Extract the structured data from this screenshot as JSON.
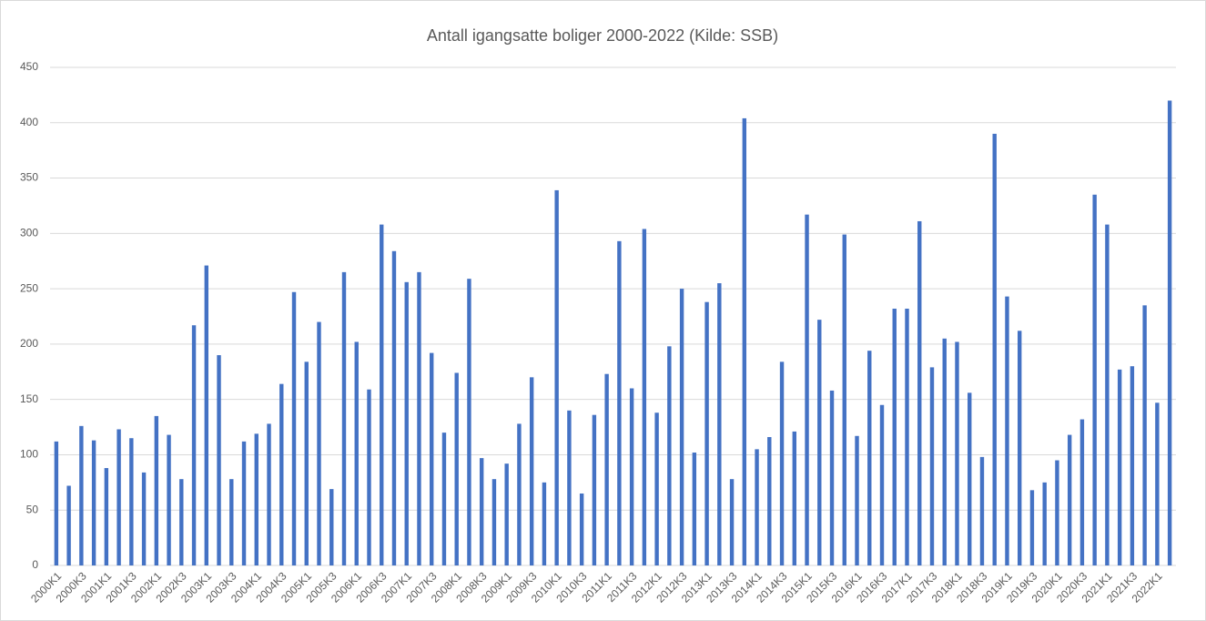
{
  "chart_data": {
    "type": "bar",
    "title": "Antall igangsatte boliger 2000-2022 (Kilde: SSB)",
    "categories": [
      "2000K1",
      null,
      "2000K3",
      null,
      "2001K1",
      null,
      "2001K3",
      null,
      "2002K1",
      null,
      "2002K3",
      null,
      "2003K1",
      null,
      "2003K3",
      null,
      "2004K1",
      null,
      "2004K3",
      null,
      "2005K1",
      null,
      "2005K3",
      null,
      "2006K1",
      null,
      "2006K3",
      null,
      "2007K1",
      null,
      "2007K3",
      null,
      "2008K1",
      null,
      "2008K3",
      null,
      "2009K1",
      null,
      "2009K3",
      null,
      "2010K1",
      null,
      "2010K3",
      null,
      "2011K1",
      null,
      "2011K3",
      null,
      "2012K1",
      null,
      "2012K3",
      null,
      "2013K1",
      null,
      "2013K3",
      null,
      "2014K1",
      null,
      "2014K3",
      null,
      "2015K1",
      null,
      "2015K3",
      null,
      "2016K1",
      null,
      "2016K3",
      null,
      "2017K1",
      null,
      "2017K3",
      null,
      "2018K1",
      null,
      "2018K3",
      null,
      "2019K1",
      null,
      "2019K3",
      null,
      "2020K1",
      null,
      "2020K3",
      null,
      "2021K1",
      null,
      "2021K3",
      null,
      "2022K1",
      null
    ],
    "values": [
      112,
      72,
      126,
      113,
      88,
      123,
      115,
      84,
      135,
      118,
      78,
      217,
      271,
      190,
      78,
      112,
      119,
      128,
      164,
      247,
      184,
      220,
      69,
      265,
      202,
      159,
      308,
      284,
      256,
      265,
      192,
      120,
      174,
      259,
      97,
      78,
      92,
      128,
      170,
      75,
      339,
      140,
      65,
      136,
      173,
      293,
      160,
      304,
      138,
      198,
      250,
      102,
      238,
      255,
      78,
      404,
      105,
      116,
      184,
      121,
      317,
      222,
      158,
      299,
      117,
      194,
      145,
      232,
      232,
      311,
      179,
      205,
      202,
      156,
      98,
      390,
      243,
      212,
      68,
      75,
      95,
      118,
      132,
      335,
      308,
      177,
      180,
      235,
      147,
      420
    ],
    "color": "#4472c4",
    "ylim": [
      0,
      450
    ],
    "yticks": [
      0,
      50,
      100,
      150,
      200,
      250,
      300,
      350,
      400,
      450
    ],
    "grid": true
  }
}
